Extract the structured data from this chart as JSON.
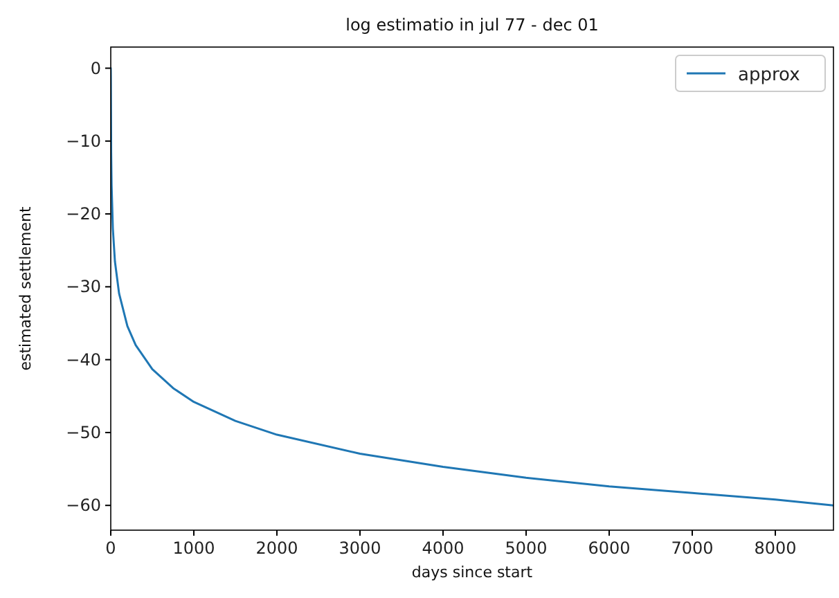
{
  "chart_data": {
    "type": "line",
    "title": "log estimatio in jul 77 - dec 01",
    "xlabel": "days since start",
    "ylabel": "estimated settlement",
    "x": [
      0,
      1,
      5,
      10,
      25,
      50,
      100,
      200,
      300,
      500,
      750,
      1000,
      1500,
      2000,
      3000,
      4000,
      5000,
      6000,
      7000,
      8000,
      8700
    ],
    "series": [
      {
        "name": "approx",
        "color": "#1f77b4",
        "values": [
          0,
          -1.2,
          -11.6,
          -16.1,
          -22.0,
          -26.5,
          -30.9,
          -35.4,
          -38.0,
          -41.3,
          -43.9,
          -45.8,
          -48.4,
          -50.3,
          -52.9,
          -54.7,
          -56.2,
          -57.4,
          -58.3,
          -59.2,
          -60.0
        ]
      }
    ],
    "xlim": [
      0,
      8700
    ],
    "xticks": [
      0,
      1000,
      2000,
      3000,
      4000,
      5000,
      6000,
      7000,
      8000
    ],
    "ylim": [
      -63.4,
      2.9
    ],
    "yticks": [
      0,
      -10,
      -20,
      -30,
      -40,
      -50,
      -60
    ],
    "grid": false,
    "legend": "top right",
    "line_style": "solid",
    "marker": "none"
  }
}
